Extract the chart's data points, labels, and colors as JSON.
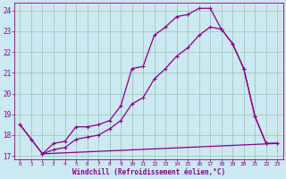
{
  "xlabel": "Windchill (Refroidissement éolien,°C)",
  "bg_color": "#cce8f0",
  "grid_color": "#99ccbb",
  "line_color": "#880088",
  "xlim_min": -0.5,
  "xlim_max": 23.5,
  "ylim_min": 16.85,
  "ylim_max": 24.35,
  "xticks": [
    0,
    1,
    2,
    3,
    4,
    5,
    6,
    7,
    8,
    9,
    10,
    11,
    12,
    13,
    14,
    15,
    16,
    17,
    18,
    19,
    20,
    21,
    22,
    23
  ],
  "yticks": [
    17,
    18,
    19,
    20,
    21,
    22,
    23,
    24
  ],
  "line1_x": [
    0,
    1,
    2,
    3,
    4,
    5,
    6,
    7,
    8,
    9,
    10,
    11,
    12,
    13,
    14,
    15,
    16,
    17,
    18,
    19,
    20,
    21,
    22,
    23
  ],
  "line1_y": [
    18.5,
    17.8,
    17.1,
    17.6,
    17.7,
    18.4,
    18.4,
    18.5,
    18.7,
    19.4,
    21.2,
    21.3,
    22.8,
    23.2,
    23.7,
    23.8,
    24.1,
    24.1,
    23.1,
    22.4,
    21.2,
    18.9,
    17.6,
    17.6
  ],
  "line2_x": [
    0,
    1,
    2,
    3,
    4,
    5,
    6,
    7,
    8,
    9,
    10,
    11,
    12,
    13,
    14,
    15,
    16,
    17,
    18,
    19,
    20,
    21,
    22,
    23
  ],
  "line2_y": [
    18.5,
    17.8,
    17.1,
    17.3,
    17.4,
    17.8,
    17.9,
    18.0,
    18.3,
    18.7,
    19.5,
    19.8,
    20.7,
    21.2,
    21.8,
    22.2,
    22.8,
    23.2,
    23.1,
    22.4,
    21.2,
    18.9,
    17.6,
    17.6
  ],
  "line3_x": [
    2,
    23
  ],
  "line3_y": [
    17.1,
    17.6
  ],
  "markersize": 3,
  "linewidth": 0.9
}
